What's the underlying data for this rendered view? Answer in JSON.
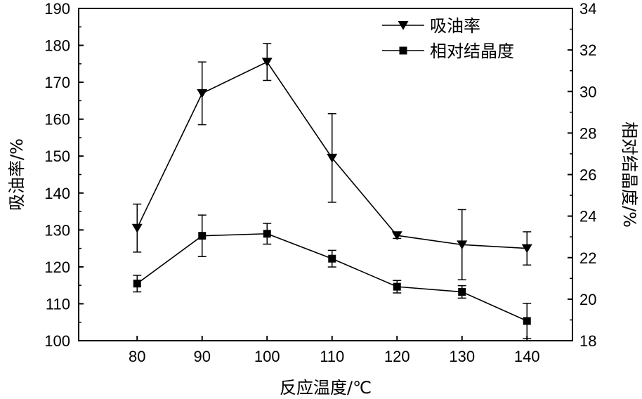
{
  "chart_data": {
    "type": "line",
    "xlabel": "反应温度/℃",
    "ylabel_left": "吸油率/%",
    "ylabel_right": "相对结晶度/%",
    "x": [
      80,
      90,
      100,
      110,
      120,
      130,
      140
    ],
    "xticks": [
      "80",
      "90",
      "100",
      "110",
      "120",
      "130",
      "140"
    ],
    "xlim": [
      71,
      147
    ],
    "ylim_left": [
      100,
      190
    ],
    "yticks_left": [
      "100",
      "110",
      "120",
      "130",
      "140",
      "150",
      "160",
      "170",
      "180",
      "190"
    ],
    "ylim_right": [
      18,
      34
    ],
    "yticks_right": [
      "18",
      "20",
      "22",
      "24",
      "26",
      "28",
      "30",
      "32",
      "34"
    ],
    "grid": false,
    "legend_position": "top-right",
    "series": [
      {
        "name": "吸油率",
        "axis": "left",
        "marker": "triangle-down",
        "values": [
          130.5,
          167.0,
          175.5,
          149.5,
          128.5,
          126.0,
          125.0
        ],
        "errors": [
          6.5,
          8.5,
          5.0,
          12.0,
          0.8,
          9.5,
          4.5
        ]
      },
      {
        "name": "相对结晶度",
        "axis": "right",
        "marker": "square",
        "values": [
          20.75,
          23.05,
          23.15,
          21.95,
          20.6,
          20.35,
          18.95
        ],
        "errors": [
          0.4,
          1.0,
          0.5,
          0.4,
          0.3,
          0.3,
          0.85
        ]
      }
    ],
    "colors": {
      "line": "#000000",
      "marker": "#000000"
    }
  }
}
